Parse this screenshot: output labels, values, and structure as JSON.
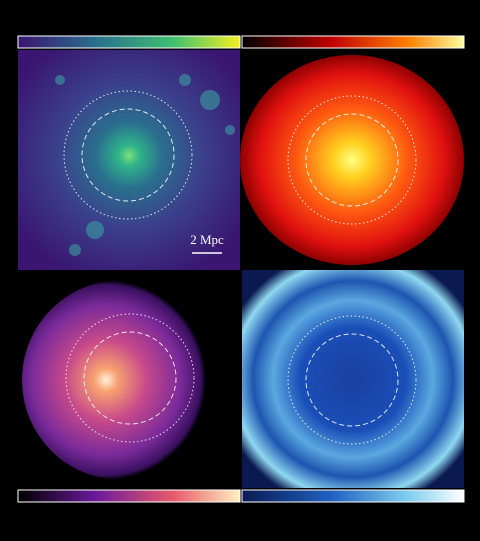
{
  "scale_bar": {
    "label": "2 Mpc"
  }
}
